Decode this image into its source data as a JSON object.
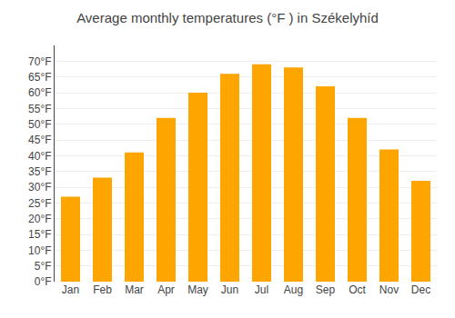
{
  "chart_data": {
    "type": "bar",
    "title": "Average monthly temperatures (°F ) in Székelyhíd",
    "categories": [
      "Jan",
      "Feb",
      "Mar",
      "Apr",
      "May",
      "Jun",
      "Jul",
      "Aug",
      "Sep",
      "Oct",
      "Nov",
      "Dec"
    ],
    "values": [
      27,
      33,
      41,
      52,
      60,
      66,
      69,
      68,
      62,
      52,
      42,
      32
    ],
    "color": "#FFA500",
    "ylim": [
      0,
      75
    ],
    "yticks": [
      {
        "value": 0,
        "label": "0°F"
      },
      {
        "value": 5,
        "label": "5°F"
      },
      {
        "value": 10,
        "label": "10°F"
      },
      {
        "value": 15,
        "label": "15°F"
      },
      {
        "value": 20,
        "label": "20°F"
      },
      {
        "value": 25,
        "label": "25°F"
      },
      {
        "value": 30,
        "label": "30°F"
      },
      {
        "value": 35,
        "label": "35°F"
      },
      {
        "value": 40,
        "label": "40°F"
      },
      {
        "value": 45,
        "label": "45°F"
      },
      {
        "value": 50,
        "label": "50°F"
      },
      {
        "value": 55,
        "label": "55°F"
      },
      {
        "value": 60,
        "label": "60°F"
      },
      {
        "value": 65,
        "label": "65°F"
      },
      {
        "value": 70,
        "label": "70°F"
      }
    ],
    "grid": true
  }
}
